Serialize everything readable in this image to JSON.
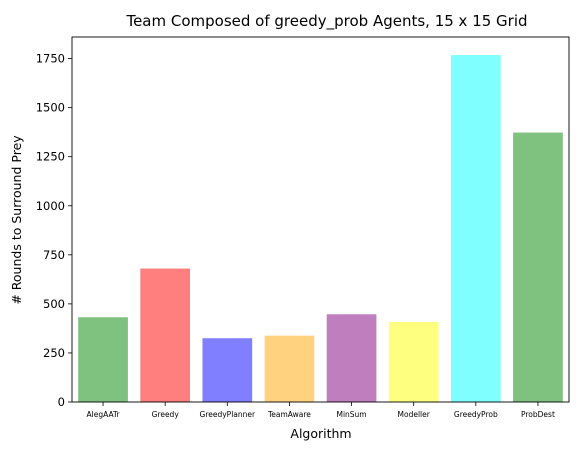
{
  "chart_data": {
    "type": "bar",
    "title": "Team Composed of greedy_prob Agents, 15 x 15 Grid",
    "xlabel": "Algorithm",
    "ylabel": "# Rounds to Surround Prey",
    "categories": [
      "AlegAATr",
      "Greedy",
      "GreedyPlanner",
      "TeamAware",
      "MinSum",
      "Modeller",
      "GreedyProb",
      "ProbDest"
    ],
    "values": [
      432,
      680,
      325,
      338,
      447,
      408,
      1768,
      1373
    ],
    "colors": [
      "#7fc27f",
      "#ff7f7f",
      "#7f7fff",
      "#ffd280",
      "#bf7fbf",
      "#ffff7f",
      "#7fffff",
      "#7fc27f"
    ],
    "ylim": [
      0,
      1860
    ],
    "yticks": [
      0,
      250,
      500,
      750,
      1000,
      1250,
      1500,
      1750
    ],
    "grid": false,
    "legend": "none"
  }
}
